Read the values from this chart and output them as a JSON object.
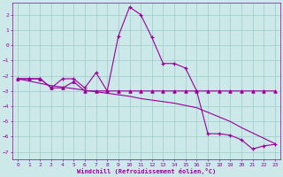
{
  "xlabel": "Windchill (Refroidissement éolien,°C)",
  "bg_color": "#cce8e8",
  "line_color": "#990099",
  "grid_color": "#99cccc",
  "xlim": [
    -0.5,
    23.5
  ],
  "ylim": [
    -7.5,
    2.8
  ],
  "yticks": [
    -7,
    -6,
    -5,
    -4,
    -3,
    -2,
    -1,
    0,
    1,
    2
  ],
  "xticks": [
    0,
    1,
    2,
    3,
    4,
    5,
    6,
    7,
    8,
    9,
    10,
    11,
    12,
    13,
    14,
    15,
    16,
    17,
    18,
    19,
    20,
    21,
    22,
    23
  ],
  "hours": [
    0,
    1,
    2,
    3,
    4,
    5,
    6,
    7,
    8,
    9,
    10,
    11,
    12,
    13,
    14,
    15,
    16,
    17,
    18,
    19,
    20,
    21,
    22,
    23
  ],
  "temp": [
    -2.2,
    -2.2,
    -2.2,
    -2.8,
    -2.2,
    -2.2,
    -2.8,
    -1.8,
    -3.0,
    0.6,
    2.5,
    2.0,
    0.5,
    -1.2,
    -1.2,
    -1.5,
    -3.0,
    -5.8,
    -5.8,
    -5.9,
    -6.2,
    -6.8,
    -6.6,
    -6.5
  ],
  "windchill": [
    -2.2,
    -2.2,
    -2.2,
    -2.8,
    -2.8,
    -2.4,
    -3.0,
    -3.0,
    -3.0,
    -3.0,
    -3.0,
    -3.0,
    -3.0,
    -3.0,
    -3.0,
    -3.0,
    -3.0,
    -3.0,
    -3.0,
    -3.0,
    -3.0,
    -3.0,
    -3.0,
    -3.0
  ],
  "regression": [
    -2.2,
    -2.35,
    -2.5,
    -2.65,
    -2.75,
    -2.85,
    -2.95,
    -3.05,
    -3.15,
    -3.25,
    -3.35,
    -3.5,
    -3.6,
    -3.7,
    -3.8,
    -3.95,
    -4.1,
    -4.4,
    -4.7,
    -5.0,
    -5.4,
    -5.75,
    -6.1,
    -6.45
  ]
}
